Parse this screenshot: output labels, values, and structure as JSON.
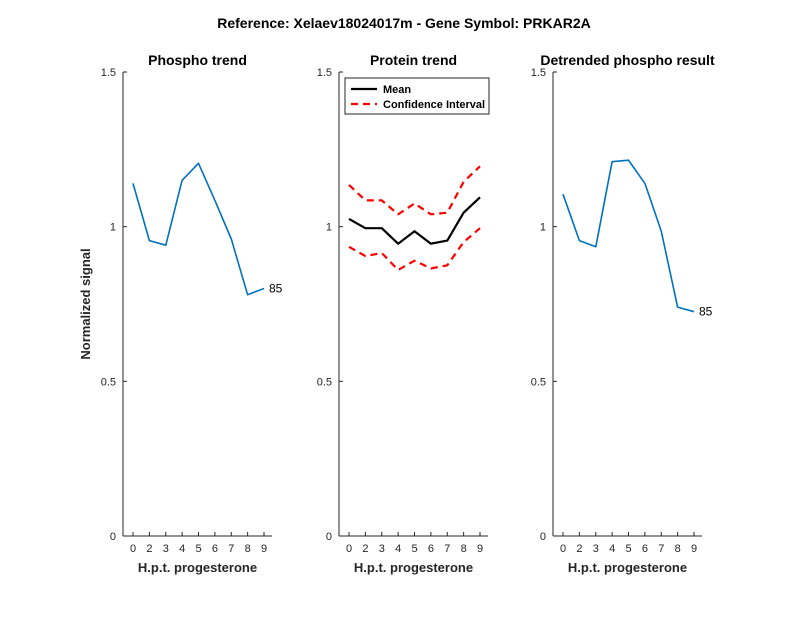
{
  "figure": {
    "title": "Reference:  Xelaev18024017m - Gene Symbol:  PRKAR2A"
  },
  "chart_data": [
    {
      "type": "line",
      "title": "Phospho trend",
      "xlabel": "H.p.t. progesterone",
      "ylabel": "Normalized signal",
      "ylim": [
        0,
        1.5
      ],
      "yticks": [
        0,
        0.5,
        1,
        1.5
      ],
      "ytick_labels": [
        "0",
        "0.5",
        "1",
        "1.5"
      ],
      "categories": [
        "0",
        "2",
        "3",
        "4",
        "5",
        "6",
        "7",
        "8",
        "9"
      ],
      "series": [
        {
          "name": "Phospho",
          "color": "#0072bd",
          "style": "solid",
          "values": [
            1.14,
            0.955,
            0.94,
            1.15,
            1.205,
            1.085,
            0.96,
            0.78,
            0.8
          ]
        }
      ],
      "annotation": {
        "text": "85",
        "point_index": 8
      }
    },
    {
      "type": "line",
      "title": "Protein trend",
      "xlabel": "H.p.t. progesterone",
      "ylabel": "",
      "ylim": [
        0,
        1.5
      ],
      "yticks": [
        0,
        0.5,
        1,
        1.5
      ],
      "ytick_labels": [
        "0",
        "0.5",
        "1",
        "1.5"
      ],
      "categories": [
        "0",
        "2",
        "3",
        "4",
        "5",
        "6",
        "7",
        "8",
        "9"
      ],
      "series": [
        {
          "name": "Mean",
          "color": "#000000",
          "style": "solid",
          "values": [
            1.025,
            0.995,
            0.995,
            0.945,
            0.985,
            0.945,
            0.955,
            1.045,
            1.095
          ]
        },
        {
          "name": "Confidence Interval",
          "color": "#ff0000",
          "style": "dashed",
          "values": [
            1.135,
            1.085,
            1.085,
            1.04,
            1.075,
            1.04,
            1.045,
            1.145,
            1.195
          ]
        },
        {
          "name": "",
          "color": "#ff0000",
          "style": "dashed",
          "values": [
            0.935,
            0.905,
            0.915,
            0.86,
            0.89,
            0.865,
            0.875,
            0.95,
            0.995
          ]
        }
      ],
      "legend": {
        "location": "top-left",
        "entries": [
          "Mean",
          "Confidence Interval"
        ]
      }
    },
    {
      "type": "line",
      "title": "Detrended phospho result",
      "xlabel": "H.p.t. progesterone",
      "ylabel": "",
      "ylim": [
        0,
        1.5
      ],
      "yticks": [
        0,
        0.5,
        1,
        1.5
      ],
      "ytick_labels": [
        "0",
        "0.5",
        "1",
        "1.5"
      ],
      "categories": [
        "0",
        "2",
        "3",
        "4",
        "5",
        "6",
        "7",
        "8",
        "9"
      ],
      "series": [
        {
          "name": "Detrended",
          "color": "#0072bd",
          "style": "solid",
          "values": [
            1.105,
            0.955,
            0.935,
            1.21,
            1.215,
            1.14,
            0.985,
            0.74,
            0.725
          ]
        }
      ],
      "annotation": {
        "text": "85",
        "point_index": 8
      }
    }
  ]
}
